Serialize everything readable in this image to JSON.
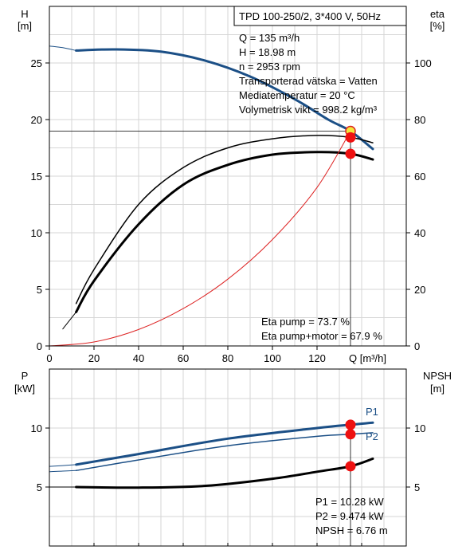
{
  "chart_data": [
    {
      "type": "line",
      "title": "TPD 100-250/2, 3*400 V, 50Hz",
      "xlabel": "Q [m³/h]",
      "ylabel_left_unit": "H",
      "ylabel_left_sub": "[m]",
      "ylabel_right_unit": "eta",
      "ylabel_right_sub": "[%]",
      "xlim": [
        0,
        160
      ],
      "ylim_left": [
        0,
        30
      ],
      "ylim_right": [
        0,
        120
      ],
      "x_ticks": [
        "0",
        "20",
        "40",
        "60",
        "80",
        "100",
        "120"
      ],
      "y_left_ticks": [
        "0",
        "5",
        "10",
        "15",
        "20",
        "25"
      ],
      "y_right_ticks": [
        "0",
        "20",
        "40",
        "60",
        "80",
        "100"
      ],
      "grid": true,
      "info_lines": [
        "Q = 135 m³/h",
        "H = 18.98 m",
        "n = 2953 rpm",
        "Transporterad vätska = Vatten",
        "Mediatemperatur = 20 °C",
        "Volymetrisk vikt = 998.2 kg/m³"
      ],
      "result_lines": [
        "Eta pump = 73.7 %",
        "Eta pump+motor = 67.9 %"
      ],
      "series": [
        {
          "color": "#1b4f86",
          "width": 3,
          "axis": "left",
          "x": [
            12,
            30,
            50,
            70,
            90,
            110,
            125,
            135,
            145
          ],
          "y": [
            26.1,
            26.2,
            26.0,
            25.2,
            23.8,
            21.8,
            20.0,
            18.98,
            17.4
          ]
        },
        {
          "color": "#1b4f86",
          "width": 1,
          "axis": "left",
          "x": [
            0,
            6,
            12
          ],
          "y": [
            26.5,
            26.35,
            26.1
          ]
        },
        {
          "color": "#000000",
          "width": 1.5,
          "axis": "right",
          "x": [
            12,
            20,
            40,
            60,
            80,
            100,
            120,
            135,
            145
          ],
          "y": [
            15,
            27,
            50,
            63,
            70,
            73.2,
            74.4,
            73.7,
            71.8
          ]
        },
        {
          "color": "#000000",
          "width": 3,
          "axis": "right",
          "x": [
            12,
            20,
            40,
            60,
            80,
            100,
            120,
            135,
            145
          ],
          "y": [
            12,
            23,
            43,
            57,
            64,
            67.6,
            68.5,
            67.9,
            65.9
          ]
        },
        {
          "color": "#000000",
          "width": 1,
          "axis": "right",
          "x": [
            6,
            9,
            12
          ],
          "y": [
            6,
            9,
            12
          ]
        },
        {
          "color": "#dd2222",
          "width": 1,
          "axis": "left",
          "x": [
            0,
            20,
            40,
            60,
            80,
            100,
            120,
            135
          ],
          "y": [
            0,
            0.35,
            1.45,
            3.3,
            5.9,
            9.4,
            14.0,
            18.98
          ]
        }
      ],
      "operating_point": {
        "x": 135,
        "H": 18.98,
        "eta_pump": 73.7,
        "eta_total": 67.9
      }
    },
    {
      "type": "line",
      "xlabel": "",
      "ylabel_left_unit": "P",
      "ylabel_left_sub": "[kW]",
      "ylabel_right_unit": "NPSH",
      "ylabel_right_sub": "[m]",
      "xlim": [
        0,
        160
      ],
      "ylim": [
        0,
        15
      ],
      "y_left_ticks": [
        "5",
        "10"
      ],
      "y_right_ticks": [
        "5",
        "10"
      ],
      "grid": true,
      "result_lines": [
        "P1 = 10.28 kW",
        "P2 = 9.474 kW",
        "NPSH = 6.76 m"
      ],
      "series": [
        {
          "name": "P1",
          "color": "#1b4f86",
          "width": 3,
          "x": [
            12,
            40,
            80,
            120,
            135,
            145
          ],
          "y": [
            6.9,
            7.8,
            9.1,
            10.0,
            10.28,
            10.45
          ]
        },
        {
          "color": "#1b4f86",
          "width": 1,
          "x": [
            0,
            6,
            12
          ],
          "y": [
            6.75,
            6.82,
            6.9
          ]
        },
        {
          "name": "P2",
          "color": "#1b4f86",
          "width": 1.5,
          "x": [
            12,
            40,
            80,
            120,
            135,
            145
          ],
          "y": [
            6.4,
            7.3,
            8.5,
            9.3,
            9.474,
            9.6
          ]
        },
        {
          "color": "#1b4f86",
          "width": 1,
          "x": [
            0,
            6,
            12
          ],
          "y": [
            6.3,
            6.35,
            6.4
          ]
        },
        {
          "color": "#000000",
          "width": 3,
          "x": [
            12,
            40,
            70,
            100,
            120,
            135,
            145
          ],
          "y": [
            5.0,
            4.95,
            5.1,
            5.7,
            6.3,
            6.76,
            7.4
          ]
        },
        {
          "color": "#000000",
          "width": 1,
          "x": [
            0,
            6,
            12
          ],
          "y": [
            5.0,
            5.0,
            5.0
          ]
        }
      ],
      "markers": [
        {
          "x": 135,
          "y": 10.28
        },
        {
          "x": 135,
          "y": 9.474
        },
        {
          "x": 135,
          "y": 6.76
        }
      ]
    }
  ]
}
